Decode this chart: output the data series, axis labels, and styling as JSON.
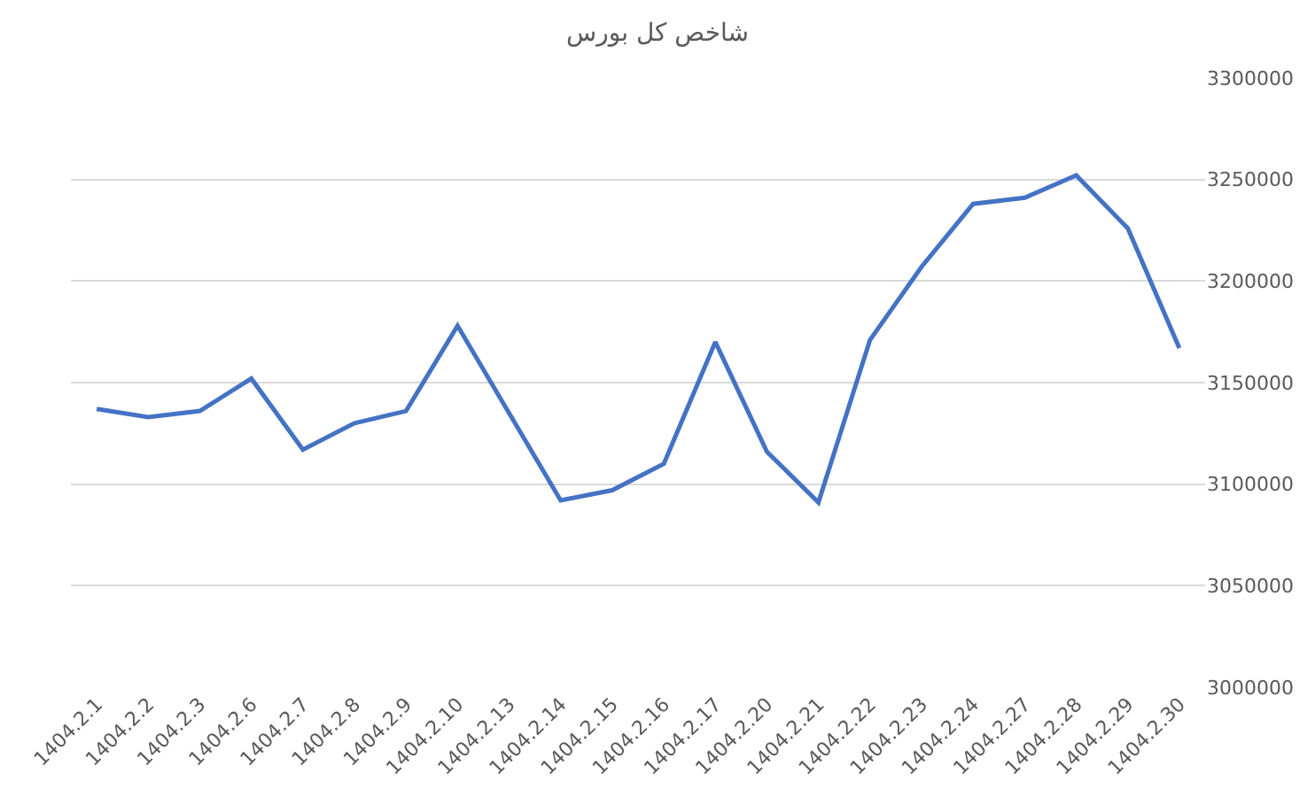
{
  "chart_data": {
    "type": "line",
    "title": "شاخص کل بورس",
    "categories": [
      "1404.2.1",
      "1404.2.2",
      "1404.2.3",
      "1404.2.6",
      "1404.2.7",
      "1404.2.8",
      "1404.2.9",
      "1404.2.10",
      "1404.2.13",
      "1404.2.14",
      "1404.2.15",
      "1404.2.16",
      "1404.2.17",
      "1404.2.20",
      "1404.2.21",
      "1404.2.22",
      "1404.2.23",
      "1404.2.24",
      "1404.2.27",
      "1404.2.28",
      "1404.2.29",
      "1404.2.30"
    ],
    "series": [
      {
        "color": "#4472c4",
        "values": [
          3137000,
          3133000,
          3136000,
          3152000,
          3117000,
          3130000,
          3136000,
          3178000,
          3135000,
          3092000,
          3097000,
          3110000,
          3170000,
          3116000,
          3091000,
          3171000,
          3207000,
          3238000,
          3241000,
          3252000,
          3226000,
          3167000
        ]
      }
    ],
    "ylim": [
      3000000,
      3300000
    ],
    "yticks": [
      3000000,
      3050000,
      3100000,
      3150000,
      3200000,
      3250000,
      3300000
    ],
    "grid": "y",
    "legend": false,
    "marker": "none",
    "line_style": "solid"
  }
}
